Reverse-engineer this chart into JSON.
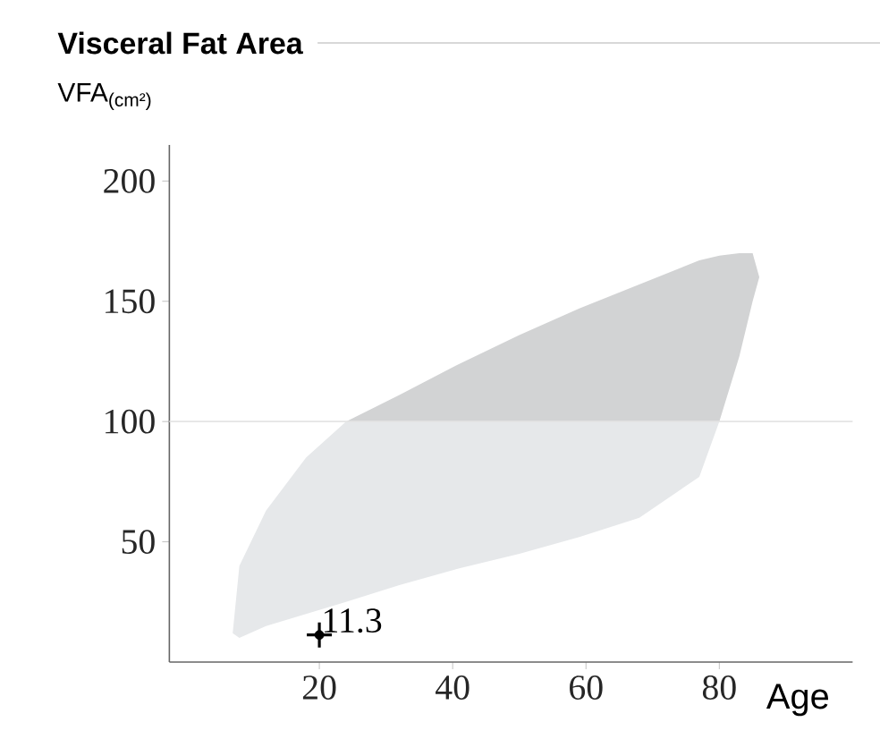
{
  "chart_data": {
    "type": "line",
    "title": "Visceral Fat Area",
    "xlabel": "Age",
    "ylabel": "VFA$_{(cm²)}$",
    "xlim": [
      -2.5,
      100
    ],
    "xticks": [
      20,
      40,
      60,
      80
    ],
    "ylim": [
      0,
      215
    ],
    "yticks": [
      50,
      100,
      150,
      200
    ],
    "grid": false,
    "series": [
      {
        "color": "#e6e8ea",
        "x": [
          7,
          8,
          12,
          18,
          24,
          32,
          41,
          50,
          59,
          68,
          77,
          80
        ],
        "values": [
          null,
          null,
          null,
          null,
          null,
          null,
          null,
          null,
          null,
          null,
          null,
          null
        ],
        "upper": [
          12,
          40,
          63,
          85,
          100,
          100,
          100,
          100,
          100,
          100,
          100,
          100
        ],
        "lower": [
          12,
          10,
          15,
          20,
          25,
          32,
          39,
          45,
          52,
          60,
          77,
          100
        ]
      },
      {
        "color": "#d2d3d4",
        "x": [
          24,
          32,
          41,
          50,
          59,
          68,
          77,
          80,
          83,
          85,
          86
        ],
        "values": [
          null,
          null,
          null,
          null,
          null,
          null,
          null,
          null,
          null,
          null,
          null
        ],
        "upper": [
          100,
          111,
          124,
          136,
          147,
          157,
          167,
          169,
          170,
          170,
          160
        ],
        "lower": [
          100,
          100,
          100,
          100,
          100,
          100,
          100,
          100,
          127,
          150,
          160
        ]
      },
      {
        "type": "scatter",
        "color": "#000000",
        "marker": "cross",
        "x": [
          20
        ],
        "values": [
          11.3
        ],
        "value_labels": [
          "11.3"
        ]
      }
    ],
    "ref_lines": [
      {
        "axis": "y",
        "value": 100,
        "color": "#e4e4e4"
      }
    ]
  }
}
